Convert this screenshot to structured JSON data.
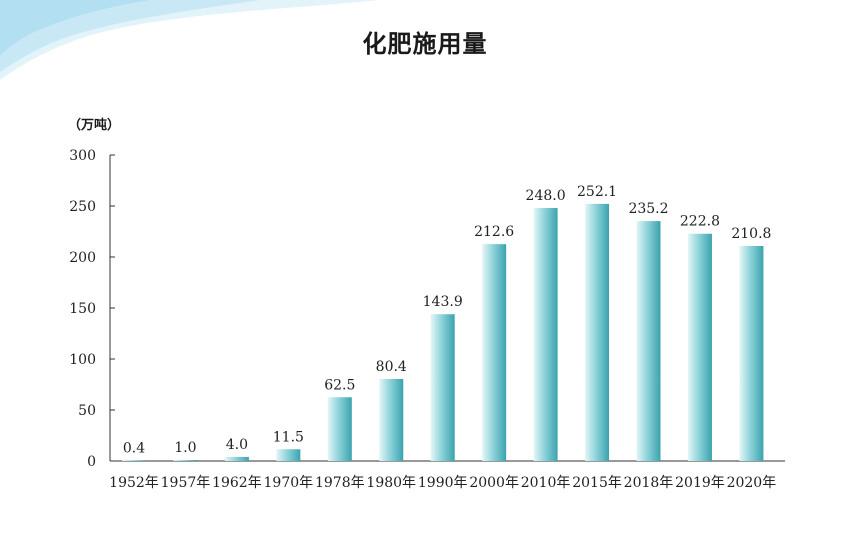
{
  "chart_data": {
    "type": "bar",
    "title": "化肥施用量",
    "unit": "（万吨）",
    "categories": [
      "1952年",
      "1957年",
      "1962年",
      "1970年",
      "1978年",
      "1980年",
      "1990年",
      "2000年",
      "2010年",
      "2015年",
      "2018年",
      "2019年",
      "2020年"
    ],
    "values": [
      0.4,
      1.0,
      4.0,
      11.5,
      62.5,
      80.4,
      143.9,
      212.6,
      248.0,
      252.1,
      235.2,
      222.8,
      210.8
    ],
    "value_labels": [
      "0.4",
      "1.0",
      "4.0",
      "11.5",
      "62.5",
      "80.4",
      "143.9",
      "212.6",
      "248.0",
      "252.1",
      "235.2",
      "222.8",
      "210.8"
    ],
    "ylim": [
      0,
      300
    ],
    "yticks": [
      0,
      50,
      100,
      150,
      200,
      250,
      300
    ],
    "grid": false,
    "legend": "none",
    "colors": {
      "bar_light": "#e4f6f7",
      "bar_mid": "#8ed3da",
      "bar_dark": "#3aa3ae",
      "axis": "#333333",
      "decor": "#bfe3f2"
    }
  }
}
